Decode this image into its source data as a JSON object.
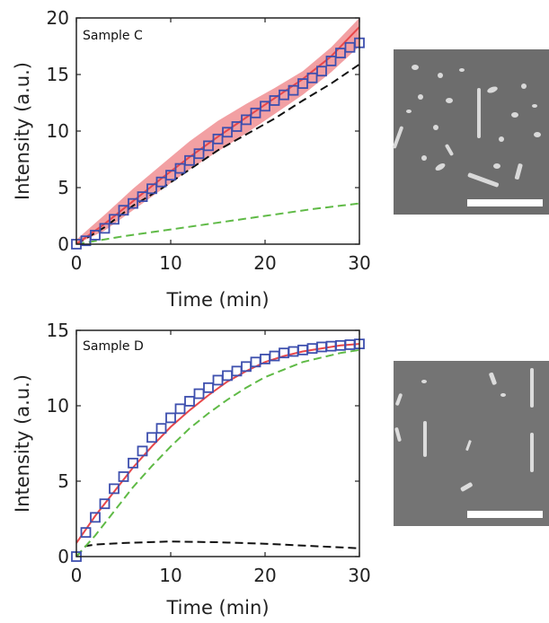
{
  "colors": {
    "fit_line": "#e8474a",
    "fit_band": "#f08f93",
    "markers": "#3d4fae",
    "black_component": "#111111",
    "green_component": "#5fba46",
    "sem_background": "#6f6f6f",
    "scale_bar": "#ffffff"
  },
  "chart_data": [
    {
      "type": "line",
      "annotation": "Sample C",
      "xlabel": "Time (min)",
      "ylabel": "Intensity (a.u.)",
      "xlim": [
        0,
        30
      ],
      "ylim": [
        0,
        20
      ],
      "xticks": [
        "0",
        "10",
        "20",
        "30"
      ],
      "yticks": [
        "0",
        "5",
        "10",
        "15",
        "20"
      ],
      "grid": false,
      "series": [
        {
          "style": "squares",
          "color": "#3d4fae",
          "x": [
            0,
            1,
            2,
            3,
            4,
            5,
            6,
            7,
            8,
            9,
            10,
            11,
            12,
            13,
            14,
            15,
            16,
            17,
            18,
            19,
            20,
            21,
            22,
            23,
            24,
            25,
            26,
            27,
            28,
            29,
            30
          ],
          "y": [
            0,
            0.3,
            0.8,
            1.4,
            2.2,
            3.0,
            3.6,
            4.2,
            4.9,
            5.5,
            6.1,
            6.7,
            7.4,
            8.0,
            8.7,
            9.3,
            9.9,
            10.4,
            11.0,
            11.6,
            12.2,
            12.7,
            13.2,
            13.6,
            14.2,
            14.7,
            15.3,
            16.2,
            16.9,
            17.4,
            17.8
          ]
        },
        {
          "style": "line",
          "color": "#e8474a",
          "x": [
            0,
            3,
            6,
            9,
            12,
            15,
            18,
            21,
            24,
            27,
            30
          ],
          "y": [
            0,
            1.8,
            3.8,
            5.8,
            7.7,
            9.5,
            11.2,
            12.9,
            14.6,
            16.6,
            19.2
          ]
        },
        {
          "style": "band",
          "color": "#f08f93",
          "x": [
            0,
            3,
            6,
            9,
            12,
            15,
            18,
            21,
            24,
            27,
            30
          ],
          "upper": [
            0.4,
            2.6,
            4.9,
            7.0,
            9.1,
            10.9,
            12.4,
            13.8,
            15.3,
            17.4,
            20.0
          ],
          "lower": [
            0,
            1.2,
            3.0,
            4.8,
            6.6,
            8.2,
            9.8,
            11.5,
            13.2,
            15.2,
            17.5
          ]
        },
        {
          "style": "dashed",
          "color": "#111111",
          "x": [
            0,
            3,
            6,
            9,
            12,
            15,
            18,
            21,
            24,
            27,
            30
          ],
          "y": [
            0,
            1.5,
            3.4,
            4.9,
            6.6,
            8.3,
            9.7,
            11.1,
            12.7,
            14.2,
            15.9
          ]
        },
        {
          "style": "dashed",
          "color": "#5fba46",
          "x": [
            0,
            5,
            10,
            15,
            20,
            25,
            30
          ],
          "y": [
            0,
            0.7,
            1.3,
            1.9,
            2.5,
            3.1,
            3.6
          ]
        }
      ]
    },
    {
      "type": "line",
      "annotation": "Sample D",
      "xlabel": "Time (min)",
      "ylabel": "Intensity (a.u.)",
      "xlim": [
        0,
        30
      ],
      "ylim": [
        0,
        15
      ],
      "xticks": [
        "0",
        "10",
        "20",
        "30"
      ],
      "yticks": [
        "0",
        "5",
        "10",
        "15"
      ],
      "grid": false,
      "series": [
        {
          "style": "squares",
          "color": "#3d4fae",
          "x": [
            0,
            1,
            2,
            3,
            4,
            5,
            6,
            7,
            8,
            9,
            10,
            11,
            12,
            13,
            14,
            15,
            16,
            17,
            18,
            19,
            20,
            21,
            22,
            23,
            24,
            25,
            26,
            27,
            28,
            29,
            30
          ],
          "y": [
            0,
            1.6,
            2.6,
            3.5,
            4.5,
            5.3,
            6.2,
            7.0,
            7.9,
            8.5,
            9.2,
            9.8,
            10.3,
            10.8,
            11.2,
            11.7,
            12.0,
            12.3,
            12.6,
            12.9,
            13.1,
            13.3,
            13.5,
            13.6,
            13.7,
            13.8,
            13.9,
            13.95,
            14.0,
            14.05,
            14.1
          ]
        },
        {
          "style": "line",
          "color": "#e8474a",
          "x": [
            0,
            1,
            2,
            4,
            6,
            8,
            10,
            12,
            14,
            16,
            18,
            20,
            22,
            24,
            26,
            28,
            30
          ],
          "y": [
            0.9,
            1.8,
            2.7,
            4.3,
            5.9,
            7.3,
            8.6,
            9.7,
            10.7,
            11.6,
            12.3,
            12.9,
            13.3,
            13.6,
            13.8,
            14.0,
            14.1
          ]
        },
        {
          "style": "dashed",
          "color": "#111111",
          "x": [
            0,
            1,
            2,
            5,
            10,
            15,
            20,
            25,
            30
          ],
          "y": [
            0,
            0.7,
            0.8,
            0.9,
            1.0,
            0.95,
            0.85,
            0.7,
            0.55
          ]
        },
        {
          "style": "dashed",
          "color": "#5fba46",
          "x": [
            0,
            2,
            4,
            6,
            8,
            10,
            12,
            14,
            16,
            18,
            20,
            22,
            24,
            26,
            28,
            30
          ],
          "y": [
            0,
            1.4,
            3.0,
            4.6,
            6.0,
            7.3,
            8.5,
            9.5,
            10.4,
            11.2,
            11.9,
            12.4,
            12.9,
            13.2,
            13.5,
            13.7
          ]
        }
      ]
    }
  ]
}
